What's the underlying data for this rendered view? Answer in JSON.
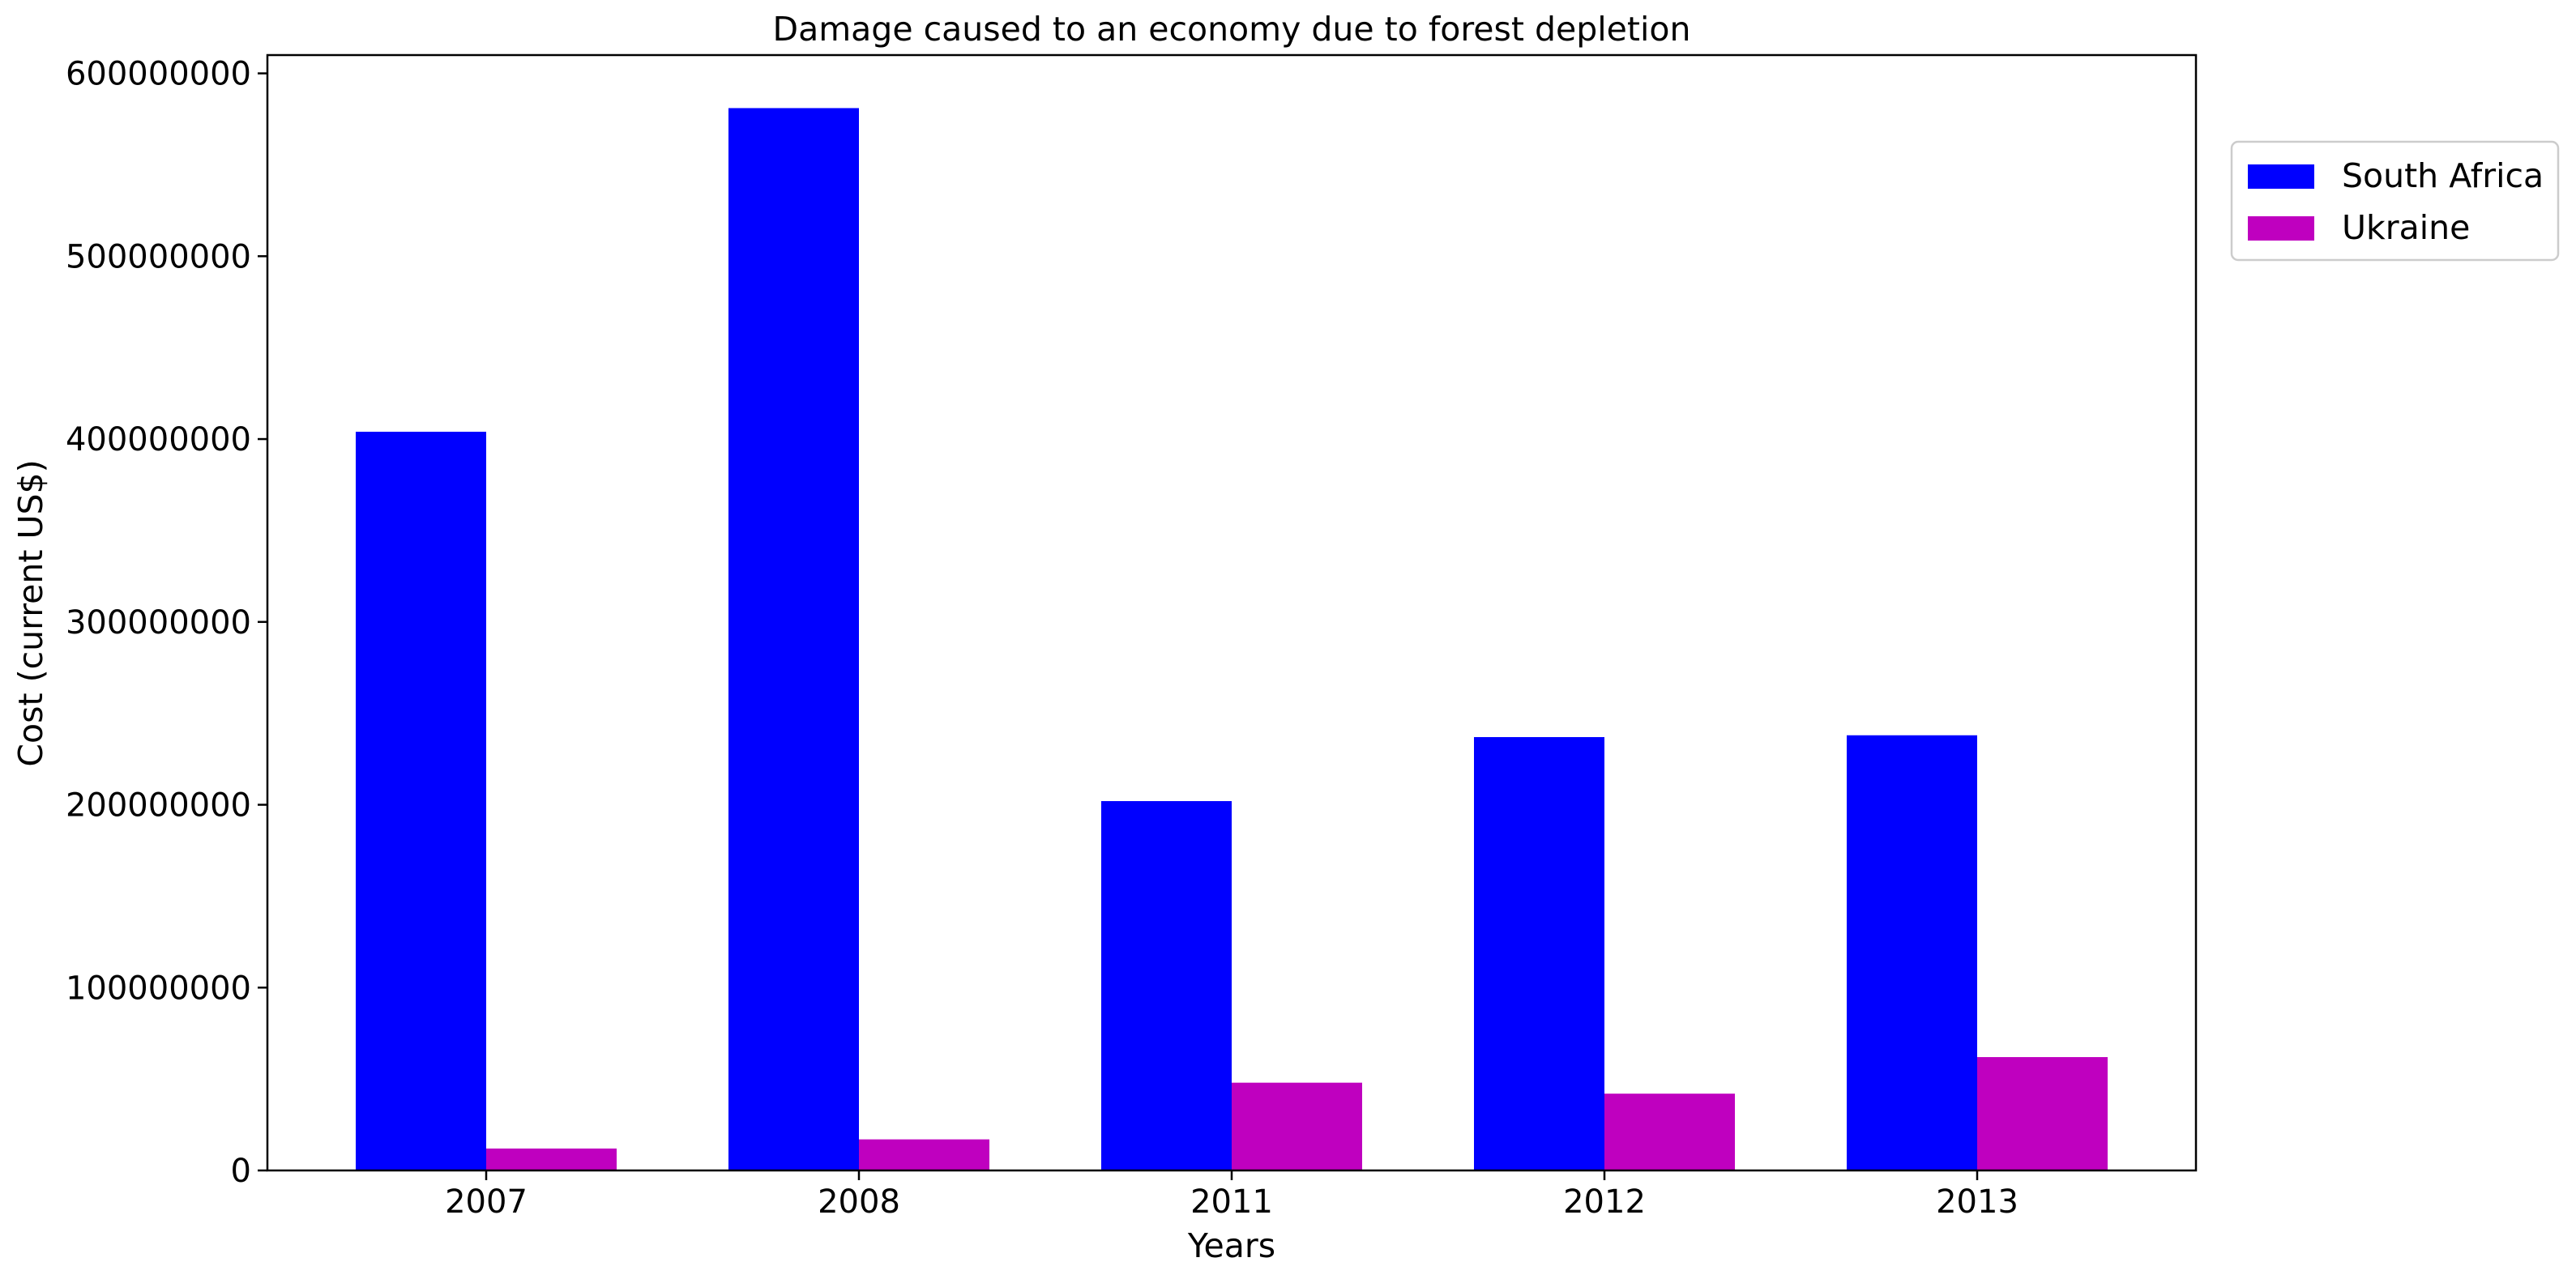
{
  "chart_data": {
    "type": "bar",
    "title": "Damage caused to an economy due to forest depletion",
    "xlabel": "Years",
    "ylabel": "Cost (current US$)",
    "categories": [
      "2007",
      "2008",
      "2011",
      "2012",
      "2013"
    ],
    "series": [
      {
        "name": "South Africa",
        "color": "#0000ff",
        "values": [
          404000000,
          581000000,
          202000000,
          237000000,
          238000000
        ]
      },
      {
        "name": "Ukraine",
        "color": "#bf00bf",
        "values": [
          12000000,
          17000000,
          48000000,
          42000000,
          62000000
        ]
      }
    ],
    "ylim": [
      0,
      610000000
    ],
    "yticks": [
      0,
      100000000,
      200000000,
      300000000,
      400000000,
      500000000,
      600000000
    ],
    "ytick_labels": [
      "0",
      "100000000",
      "200000000",
      "300000000",
      "400000000",
      "500000000",
      "600000000"
    ],
    "grid": false,
    "legend_position": "outside-top-right"
  }
}
